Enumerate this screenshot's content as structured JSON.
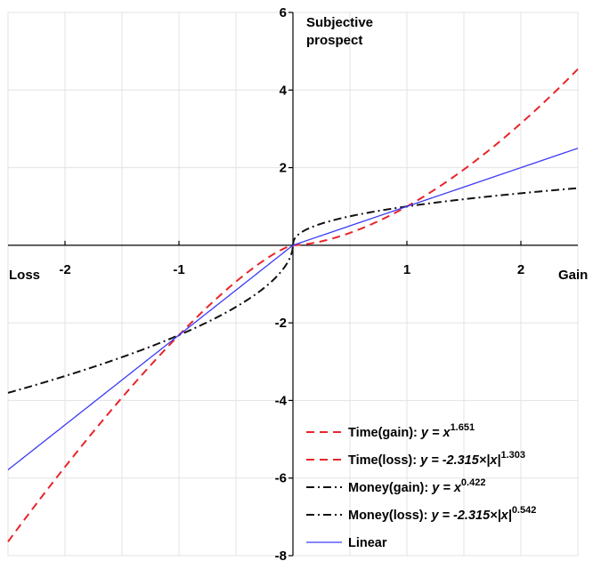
{
  "chart_data": {
    "type": "line",
    "xlim": [
      -2.5,
      2.5
    ],
    "ylim": [
      -8,
      6
    ],
    "x_ticks": [
      -2,
      -1,
      1,
      2
    ],
    "y_ticks": [
      6,
      4,
      2,
      -2,
      -4,
      -6,
      -8
    ],
    "x_tick_labels": [
      "-2",
      "-1",
      "1",
      "2"
    ],
    "y_tick_labels": [
      "6",
      "4",
      "2",
      "-2",
      "-4",
      "-6",
      "-8"
    ],
    "xlabel_left": "Loss",
    "xlabel_right": "Gain",
    "ylabel_line1": "Subjective",
    "ylabel_line2": "prospect",
    "grid": true,
    "legend_position": "bottom-right",
    "series": [
      {
        "name": "Time(gain): y = x^1.651",
        "legend_prefix": "Time(gain): ",
        "legend_formula": "y = x",
        "legend_exponent": "1.651",
        "legend_suffix": "",
        "color": "#e8252a",
        "dash": "dashed",
        "domain": [
          0,
          2.5
        ],
        "func": "power",
        "coef": 1,
        "exponent": 1.651
      },
      {
        "name": "Time(loss): y = -2.315×|x|^1.303",
        "legend_prefix": "Time(loss): ",
        "legend_formula": "y = -2.315×|x|",
        "legend_exponent": "1.303",
        "legend_suffix": "",
        "color": "#e8252a",
        "dash": "dashed",
        "domain": [
          -2.5,
          0
        ],
        "func": "power",
        "coef": -2.315,
        "exponent": 1.303
      },
      {
        "name": "Money(gain): y = x^0.422",
        "legend_prefix": "Money(gain): ",
        "legend_formula": "y = x",
        "legend_exponent": "0.422",
        "legend_suffix": "",
        "color": "#111111",
        "dash": "dashdot",
        "domain": [
          0,
          2.5
        ],
        "func": "power",
        "coef": 1,
        "exponent": 0.422
      },
      {
        "name": "Money(loss): y = -2.315×|x|^0.542",
        "legend_prefix": "Money(loss): ",
        "legend_formula": "y = -2.315×|x|",
        "legend_exponent": "0.542",
        "legend_suffix": "",
        "color": "#111111",
        "dash": "dashdot",
        "domain": [
          -2.5,
          0
        ],
        "func": "power",
        "coef": -2.315,
        "exponent": 0.542
      },
      {
        "name": "Linear",
        "legend_prefix": "Linear",
        "legend_formula": "",
        "legend_exponent": "",
        "legend_suffix": "",
        "color": "#3b3bf5",
        "dash": "solid",
        "domain": [
          -2.5,
          2.5
        ],
        "func": "linear",
        "gain_slope": 1,
        "loss_slope": 2.315
      }
    ]
  }
}
